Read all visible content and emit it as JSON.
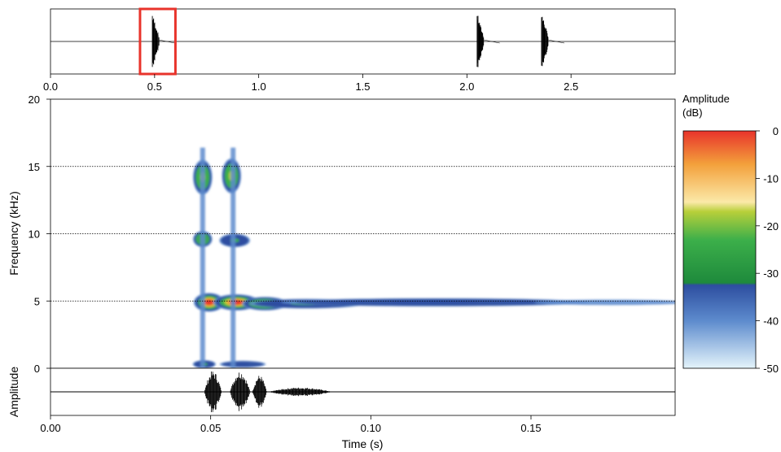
{
  "chart_data": [
    {
      "type": "line",
      "name": "overview-waveform",
      "xlabel": "",
      "ylabel": "",
      "xlim": [
        0.0,
        3.0
      ],
      "x_ticks": [
        0.0,
        0.5,
        1.0,
        1.5,
        2.0,
        2.5
      ],
      "x_tick_labels": [
        "0.0",
        "0.5",
        "1.0",
        "1.5",
        "2.0",
        "2.5"
      ],
      "bursts": [
        {
          "t": 0.5,
          "amp": 0.95
        },
        {
          "t": 2.06,
          "amp": 0.95
        },
        {
          "t": 2.37,
          "amp": 0.95
        }
      ],
      "selection": {
        "start": 0.43,
        "end": 0.6,
        "color": "#e8332b"
      }
    },
    {
      "type": "heatmap",
      "name": "spectrogram",
      "xlabel": "",
      "ylabel": "Frequency (kHz)",
      "xlim": [
        0.0,
        0.195
      ],
      "ylim": [
        0,
        20
      ],
      "y_ticks": [
        0,
        5,
        10,
        15,
        20
      ],
      "y_tick_labels": [
        "0",
        "5",
        "10",
        "15",
        "20"
      ],
      "gridlines_y": [
        5,
        10,
        15
      ],
      "blobs": [
        {
          "t": 0.0475,
          "t_width": 0.0025,
          "f": 14.2,
          "f_width": 1.3,
          "level": -22
        },
        {
          "t": 0.0565,
          "t_width": 0.0025,
          "f": 14.3,
          "f_width": 1.3,
          "level": -23
        },
        {
          "t": 0.0475,
          "t_width": 0.0025,
          "f": 9.6,
          "f_width": 0.6,
          "level": -29
        },
        {
          "t": 0.0575,
          "t_width": 0.004,
          "f": 9.5,
          "f_width": 0.5,
          "level": -30
        },
        {
          "t": 0.0495,
          "t_width": 0.004,
          "f": 4.9,
          "f_width": 0.7,
          "level": -4
        },
        {
          "t": 0.058,
          "t_width": 0.006,
          "f": 4.9,
          "f_width": 0.6,
          "level": -6
        },
        {
          "t": 0.067,
          "t_width": 0.006,
          "f": 4.8,
          "f_width": 0.5,
          "level": -18
        },
        {
          "t": 0.08,
          "t_width": 0.015,
          "f": 4.8,
          "f_width": 0.35,
          "level": -30
        },
        {
          "t": 0.12,
          "t_width": 0.04,
          "f": 4.9,
          "f_width": 0.3,
          "level": -36
        },
        {
          "t": 0.175,
          "t_width": 0.02,
          "f": 4.9,
          "f_width": 0.2,
          "level": -44
        },
        {
          "t": 0.048,
          "t_width": 0.003,
          "f": 0.3,
          "f_width": 0.3,
          "level": -32
        },
        {
          "t": 0.06,
          "t_width": 0.006,
          "f": 0.3,
          "f_width": 0.25,
          "level": -34
        }
      ],
      "colorbar": {
        "title": "Amplitude\n(dB)",
        "range": [
          -50,
          0
        ],
        "ticks": [
          0,
          -10,
          -20,
          -30,
          -40,
          -50
        ],
        "tick_labels": [
          "0",
          "-10",
          "-20",
          "-30",
          "-40",
          "-50"
        ],
        "stops": [
          {
            "db": 0,
            "color": "#e8332b"
          },
          {
            "db": -7,
            "color": "#f3a03b"
          },
          {
            "db": -15,
            "color": "#fbe9a8"
          },
          {
            "db": -17,
            "color": "#b8cf3a"
          },
          {
            "db": -23,
            "color": "#3caf4a"
          },
          {
            "db": -32,
            "color": "#1e8a3c"
          },
          {
            "db": -32.5,
            "color": "#2d4ea0"
          },
          {
            "db": -40,
            "color": "#5d8bcd"
          },
          {
            "db": -50,
            "color": "#e4f4fb"
          }
        ]
      }
    },
    {
      "type": "line",
      "name": "detail-waveform",
      "xlabel": "Time (s)",
      "ylabel": "Amplitude",
      "xlim": [
        0.0,
        0.195
      ],
      "x_ticks": [
        0.0,
        0.05,
        0.1,
        0.15
      ],
      "x_tick_labels": [
        "0.00",
        "0.05",
        "0.10",
        "0.15"
      ],
      "envelopes": [
        {
          "t_start": 0.048,
          "t_end": 0.054,
          "peak": 0.95
        },
        {
          "t_start": 0.056,
          "t_end": 0.063,
          "peak": 0.95
        },
        {
          "t_start": 0.063,
          "t_end": 0.068,
          "peak": 0.75
        },
        {
          "t_start": 0.068,
          "t_end": 0.09,
          "peak": 0.2
        }
      ]
    }
  ]
}
